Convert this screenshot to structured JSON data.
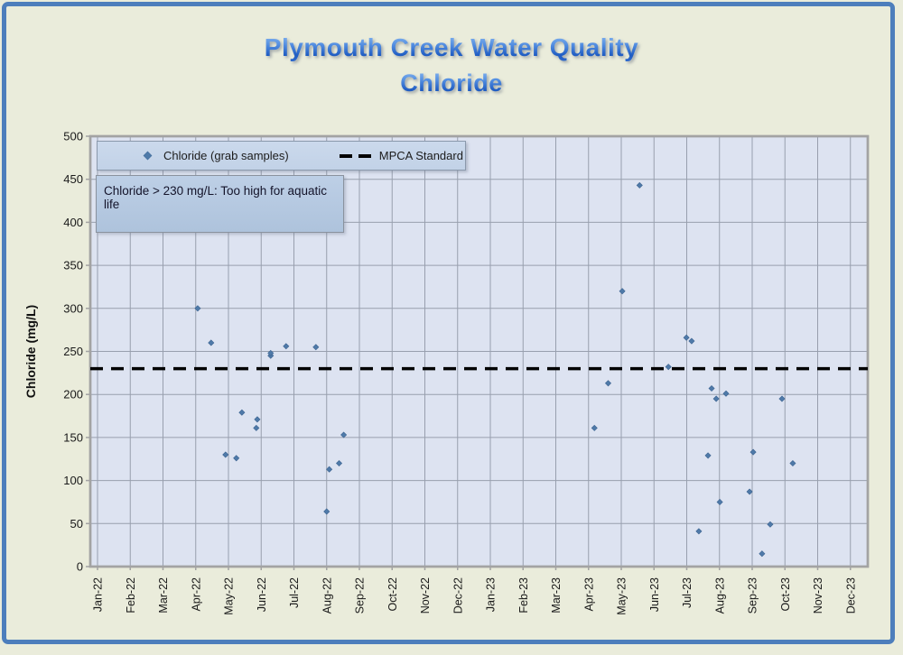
{
  "page": {
    "background_color": "#eaecdb",
    "frame_color": "#4d7ebc"
  },
  "title": {
    "line1": "Plymouth Creek Water Quality",
    "line2": "Chloride",
    "color": "#2e6fd0"
  },
  "legend": {
    "items": [
      {
        "label": "Chloride (grab samples)",
        "marker": "diamond",
        "color": "#4f7aa9"
      },
      {
        "label": "MPCA Standard",
        "marker": "dashed-line",
        "color": "#000000"
      }
    ]
  },
  "annotation": {
    "text": "Chloride > 230 mg/L: Too high for aquatic life"
  },
  "chart_data": {
    "type": "scatter",
    "title": "Plymouth Creek Water Quality — Chloride",
    "xlabel": "",
    "ylabel": "Chloride (mg/L)",
    "ylim": [
      0,
      500
    ],
    "ytick_step": 50,
    "grid": true,
    "legend_position": "top-left inside plot",
    "x_unit": "months since Jan-2022 (fractional month offset)",
    "x_tick_labels": [
      "Jan-22",
      "Feb-22",
      "Mar-22",
      "Apr-22",
      "May-22",
      "Jun-22",
      "Jul-22",
      "Aug-22",
      "Sep-22",
      "Oct-22",
      "Nov-22",
      "Dec-22",
      "Jan-23",
      "Feb-23",
      "Mar-23",
      "Apr-23",
      "May-23",
      "Jun-23",
      "Jul-23",
      "Aug-23",
      "Sep-23",
      "Oct-23",
      "Nov-23",
      "Dec-23"
    ],
    "series": [
      {
        "name": "Chloride (grab samples)",
        "type": "scatter",
        "marker": "diamond",
        "color": "#4f7aa9",
        "points": [
          {
            "m": 3.06,
            "value": 300
          },
          {
            "m": 3.47,
            "value": 260
          },
          {
            "m": 3.91,
            "value": 130
          },
          {
            "m": 4.24,
            "value": 126
          },
          {
            "m": 4.41,
            "value": 179
          },
          {
            "m": 4.85,
            "value": 161
          },
          {
            "m": 4.88,
            "value": 171
          },
          {
            "m": 5.29,
            "value": 245
          },
          {
            "m": 5.29,
            "value": 248
          },
          {
            "m": 5.76,
            "value": 256
          },
          {
            "m": 6.67,
            "value": 255
          },
          {
            "m": 7.0,
            "value": 64
          },
          {
            "m": 7.08,
            "value": 113
          },
          {
            "m": 7.38,
            "value": 120
          },
          {
            "m": 7.52,
            "value": 153
          },
          {
            "m": 15.18,
            "value": 161
          },
          {
            "m": 15.6,
            "value": 213
          },
          {
            "m": 16.03,
            "value": 320
          },
          {
            "m": 16.56,
            "value": 443
          },
          {
            "m": 17.44,
            "value": 232
          },
          {
            "m": 17.99,
            "value": 266
          },
          {
            "m": 18.15,
            "value": 262
          },
          {
            "m": 18.37,
            "value": 41
          },
          {
            "m": 18.65,
            "value": 129
          },
          {
            "m": 18.76,
            "value": 207
          },
          {
            "m": 18.9,
            "value": 195
          },
          {
            "m": 19.01,
            "value": 75
          },
          {
            "m": 19.2,
            "value": 201
          },
          {
            "m": 19.92,
            "value": 87
          },
          {
            "m": 20.03,
            "value": 133
          },
          {
            "m": 20.3,
            "value": 15
          },
          {
            "m": 20.55,
            "value": 49
          },
          {
            "m": 20.91,
            "value": 195
          },
          {
            "m": 21.24,
            "value": 120
          }
        ]
      },
      {
        "name": "MPCA Standard",
        "type": "hline",
        "y": 230,
        "style": "dashed",
        "color": "#000000"
      }
    ],
    "colors": {
      "plot_background": "#dde3f1",
      "gridline": "#989fae",
      "plot_border": "#a3a3a3",
      "tick_text": "#1a1a1a"
    }
  }
}
